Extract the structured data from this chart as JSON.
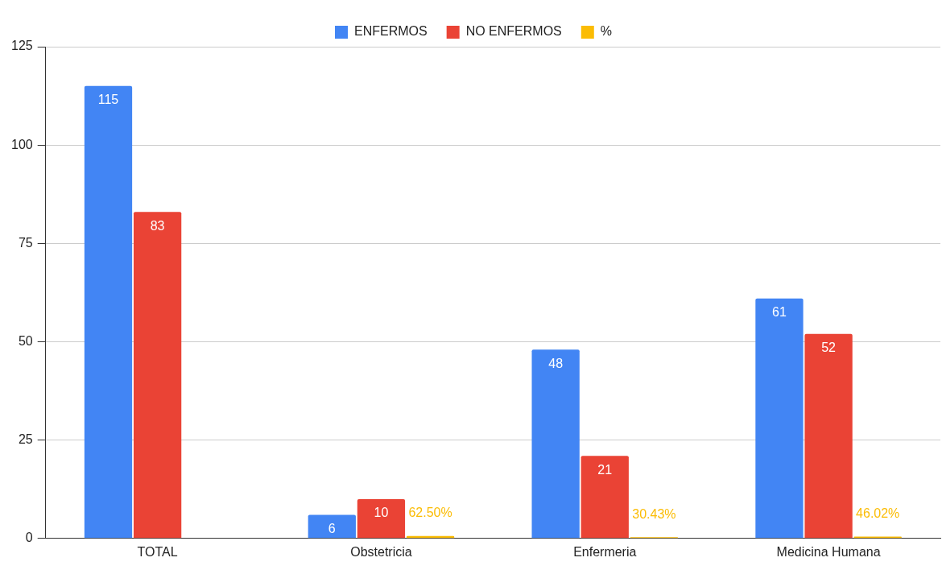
{
  "chart_data": {
    "type": "bar",
    "categories": [
      "TOTAL",
      "Obstetricia",
      "Enfermeria",
      "Medicina Humana"
    ],
    "series": [
      {
        "name": "ENFERMOS",
        "color": "#4285f4",
        "values": [
          115,
          6,
          48,
          61
        ],
        "value_labels": [
          "115",
          "6",
          "48",
          "61"
        ]
      },
      {
        "name": "NO ENFERMOS",
        "color": "#ea4335",
        "values": [
          83,
          10,
          21,
          52
        ],
        "value_labels": [
          "83",
          "10",
          "21",
          "52"
        ]
      },
      {
        "name": "%",
        "color": "#fbbc04",
        "values": [
          null,
          0.625,
          0.3043,
          0.4602
        ],
        "value_labels": [
          null,
          "62.50%",
          "30.43%",
          "46.02%"
        ]
      }
    ],
    "ylim": [
      0,
      125
    ],
    "yticks": [
      0,
      25,
      50,
      75,
      100,
      125
    ],
    "grid": "y",
    "legend": "top"
  }
}
